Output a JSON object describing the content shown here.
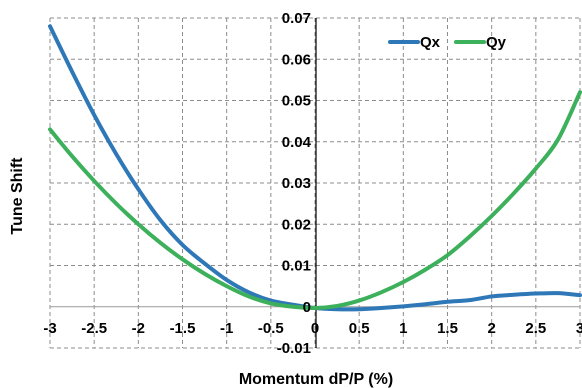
{
  "chart_data": {
    "type": "line",
    "xlabel": "Momentum dP/P (%)",
    "ylabel": "Tune Shift",
    "xlim": [
      -3,
      3
    ],
    "ylim": [
      -0.01,
      0.07
    ],
    "grid": true,
    "legend_position": "top-right",
    "x_ticks": [
      -3,
      -2.5,
      -2,
      -1.5,
      -1,
      -0.5,
      0,
      0.5,
      1,
      1.5,
      2,
      2.5,
      3
    ],
    "x_tick_labels": [
      "-3",
      "-2.5",
      "-2",
      "-1.5",
      "-1",
      "-0.5",
      "0",
      "0.5",
      "1",
      "1.5",
      "2",
      "2.5",
      "3"
    ],
    "y_ticks": [
      -0.01,
      0,
      0.01,
      0.02,
      0.03,
      0.04,
      0.05,
      0.06,
      0.07
    ],
    "y_tick_labels": [
      "-0.01",
      "0",
      "0.01",
      "0.02",
      "0.03",
      "0.04",
      "0.05",
      "0.06",
      "0.07"
    ],
    "series": [
      {
        "name": "Qx",
        "color": "#2e78b8",
        "x": [
          -3,
          -2.75,
          -2.5,
          -2.25,
          -2,
          -1.75,
          -1.5,
          -1.25,
          -1,
          -0.75,
          -0.5,
          -0.25,
          0,
          0.25,
          0.5,
          0.75,
          1,
          1.25,
          1.5,
          1.75,
          2,
          2.25,
          2.5,
          2.75,
          3
        ],
        "y": [
          0.068,
          0.057,
          0.0465,
          0.037,
          0.0285,
          0.021,
          0.015,
          0.0105,
          0.0065,
          0.0035,
          0.0015,
          0.0005,
          -0.0003,
          -0.0006,
          -0.0006,
          -0.0003,
          0.0001,
          0.0006,
          0.0012,
          0.0016,
          0.0025,
          0.0029,
          0.0032,
          0.0033,
          0.0028
        ]
      },
      {
        "name": "Qy",
        "color": "#3cb05a",
        "x": [
          -3,
          -2.75,
          -2.5,
          -2.25,
          -2,
          -1.75,
          -1.5,
          -1.25,
          -1,
          -0.75,
          -0.5,
          -0.25,
          0,
          0.25,
          0.5,
          0.75,
          1,
          1.25,
          1.5,
          1.75,
          2,
          2.25,
          2.5,
          2.75,
          3
        ],
        "y": [
          0.043,
          0.0365,
          0.0305,
          0.025,
          0.02,
          0.0155,
          0.0115,
          0.008,
          0.005,
          0.0025,
          0.0008,
          0.0,
          -0.0003,
          0.0002,
          0.0015,
          0.0035,
          0.006,
          0.009,
          0.0125,
          0.017,
          0.022,
          0.0275,
          0.0335,
          0.0405,
          0.052
        ]
      }
    ]
  }
}
